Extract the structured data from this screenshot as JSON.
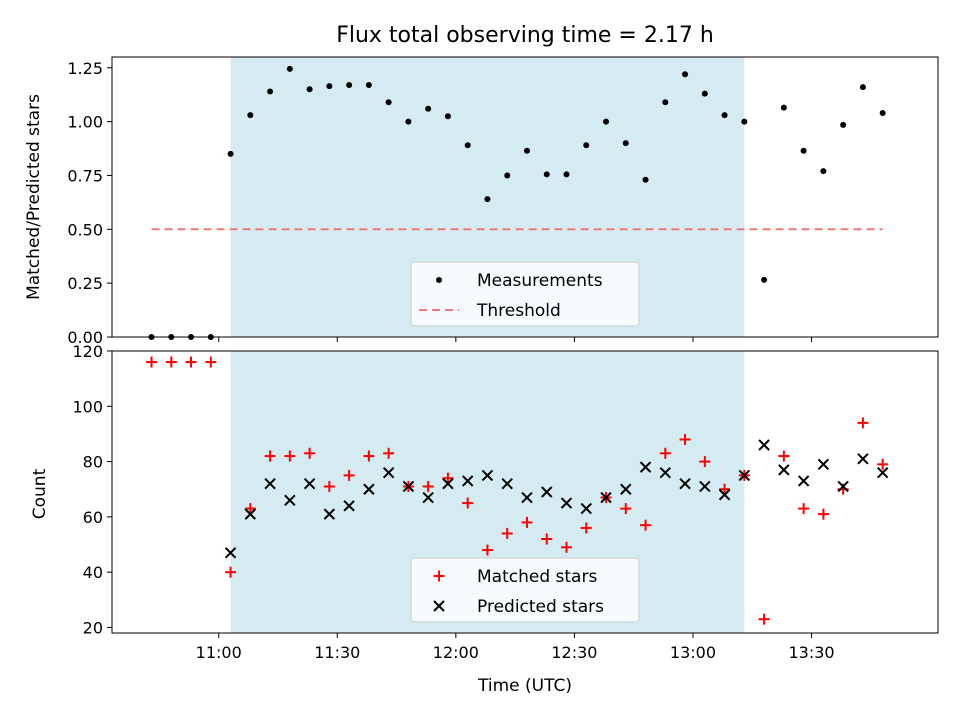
{
  "chart_data": [
    {
      "type": "scatter",
      "title": "Flux total observing time = 2.17 h",
      "xlabel": "",
      "ylabel": "Matched/Predicted stars",
      "xlim": [
        "10:33",
        "14:02"
      ],
      "ylim": [
        0,
        1.3
      ],
      "y_ticks": [
        "0.00",
        "0.25",
        "0.50",
        "0.75",
        "1.00",
        "1.25"
      ],
      "shaded_interval": [
        "11:03",
        "13:13"
      ],
      "shade_color": "#d4ebf2",
      "series": [
        {
          "name": "Measurements",
          "marker": "dot",
          "color": "#000000",
          "points": [
            [
              "10:43",
              0.0
            ],
            [
              "10:48",
              0.0
            ],
            [
              "10:53",
              0.0
            ],
            [
              "10:58",
              0.0
            ],
            [
              "11:03",
              0.85
            ],
            [
              "11:08",
              1.03
            ],
            [
              "11:13",
              1.14
            ],
            [
              "11:18",
              1.245
            ],
            [
              "11:23",
              1.15
            ],
            [
              "11:28",
              1.165
            ],
            [
              "11:33",
              1.17
            ],
            [
              "11:38",
              1.17
            ],
            [
              "11:43",
              1.09
            ],
            [
              "11:48",
              1.0
            ],
            [
              "11:53",
              1.06
            ],
            [
              "11:58",
              1.025
            ],
            [
              "12:03",
              0.89
            ],
            [
              "12:08",
              0.64
            ],
            [
              "12:13",
              0.75
            ],
            [
              "12:18",
              0.865
            ],
            [
              "12:23",
              0.755
            ],
            [
              "12:28",
              0.755
            ],
            [
              "12:33",
              0.89
            ],
            [
              "12:38",
              1.0
            ],
            [
              "12:43",
              0.9
            ],
            [
              "12:48",
              0.73
            ],
            [
              "12:53",
              1.09
            ],
            [
              "12:58",
              1.22
            ],
            [
              "13:03",
              1.13
            ],
            [
              "13:08",
              1.03
            ],
            [
              "13:13",
              1.0
            ],
            [
              "13:18",
              0.265
            ],
            [
              "13:23",
              1.065
            ],
            [
              "13:28",
              0.865
            ],
            [
              "13:33",
              0.77
            ],
            [
              "13:38",
              0.985
            ],
            [
              "13:43",
              1.16
            ],
            [
              "13:48",
              1.04
            ]
          ]
        },
        {
          "name": "Threshold",
          "marker": "dashed-line",
          "color": "#f07a7a",
          "points": [
            [
              "10:43",
              0.5
            ],
            [
              "13:48",
              0.5
            ]
          ]
        }
      ],
      "legend": "lower-center"
    },
    {
      "type": "scatter",
      "title": "",
      "xlabel": "Time (UTC)",
      "ylabel": "Count",
      "xlim": [
        "10:33",
        "14:02"
      ],
      "ylim": [
        18,
        120
      ],
      "y_ticks": [
        "20",
        "40",
        "60",
        "80",
        "100",
        "120"
      ],
      "x_ticks": [
        "11:00",
        "11:30",
        "12:00",
        "12:30",
        "13:00",
        "13:30"
      ],
      "shaded_interval": [
        "11:03",
        "13:13"
      ],
      "shade_color": "#d4ebf2",
      "series": [
        {
          "name": "Matched stars",
          "marker": "plus",
          "color": "#ff0000",
          "points": [
            [
              "10:43",
              116
            ],
            [
              "10:48",
              116
            ],
            [
              "10:53",
              116
            ],
            [
              "10:58",
              116
            ],
            [
              "11:03",
              40
            ],
            [
              "11:08",
              63
            ],
            [
              "11:13",
              82
            ],
            [
              "11:18",
              82
            ],
            [
              "11:23",
              83
            ],
            [
              "11:28",
              71
            ],
            [
              "11:33",
              75
            ],
            [
              "11:38",
              82
            ],
            [
              "11:43",
              83
            ],
            [
              "11:48",
              71
            ],
            [
              "11:53",
              71
            ],
            [
              "11:58",
              74
            ],
            [
              "12:03",
              65
            ],
            [
              "12:08",
              48
            ],
            [
              "12:13",
              54
            ],
            [
              "12:18",
              58
            ],
            [
              "12:23",
              52
            ],
            [
              "12:28",
              49
            ],
            [
              "12:33",
              56
            ],
            [
              "12:38",
              67
            ],
            [
              "12:43",
              63
            ],
            [
              "12:48",
              57
            ],
            [
              "12:53",
              83
            ],
            [
              "12:58",
              88
            ],
            [
              "13:03",
              80
            ],
            [
              "13:08",
              70
            ],
            [
              "13:13",
              75
            ],
            [
              "13:18",
              23
            ],
            [
              "13:23",
              82
            ],
            [
              "13:28",
              63
            ],
            [
              "13:33",
              61
            ],
            [
              "13:38",
              70
            ],
            [
              "13:43",
              94
            ],
            [
              "13:48",
              79
            ]
          ]
        },
        {
          "name": "Predicted stars",
          "marker": "x",
          "color": "#000000",
          "points": [
            [
              "11:03",
              47
            ],
            [
              "11:08",
              61
            ],
            [
              "11:13",
              72
            ],
            [
              "11:18",
              66
            ],
            [
              "11:23",
              72
            ],
            [
              "11:28",
              61
            ],
            [
              "11:33",
              64
            ],
            [
              "11:38",
              70
            ],
            [
              "11:43",
              76
            ],
            [
              "11:48",
              71
            ],
            [
              "11:53",
              67
            ],
            [
              "11:58",
              72
            ],
            [
              "12:03",
              73
            ],
            [
              "12:08",
              75
            ],
            [
              "12:13",
              72
            ],
            [
              "12:18",
              67
            ],
            [
              "12:23",
              69
            ],
            [
              "12:28",
              65
            ],
            [
              "12:33",
              63
            ],
            [
              "12:38",
              67
            ],
            [
              "12:43",
              70
            ],
            [
              "12:48",
              78
            ],
            [
              "12:53",
              76
            ],
            [
              "12:58",
              72
            ],
            [
              "13:03",
              71
            ],
            [
              "13:08",
              68
            ],
            [
              "13:13",
              75
            ],
            [
              "13:18",
              86
            ],
            [
              "13:23",
              77
            ],
            [
              "13:28",
              73
            ],
            [
              "13:33",
              79
            ],
            [
              "13:38",
              71
            ],
            [
              "13:43",
              81
            ],
            [
              "13:48",
              76
            ]
          ]
        }
      ],
      "legend": "lower-center"
    }
  ]
}
